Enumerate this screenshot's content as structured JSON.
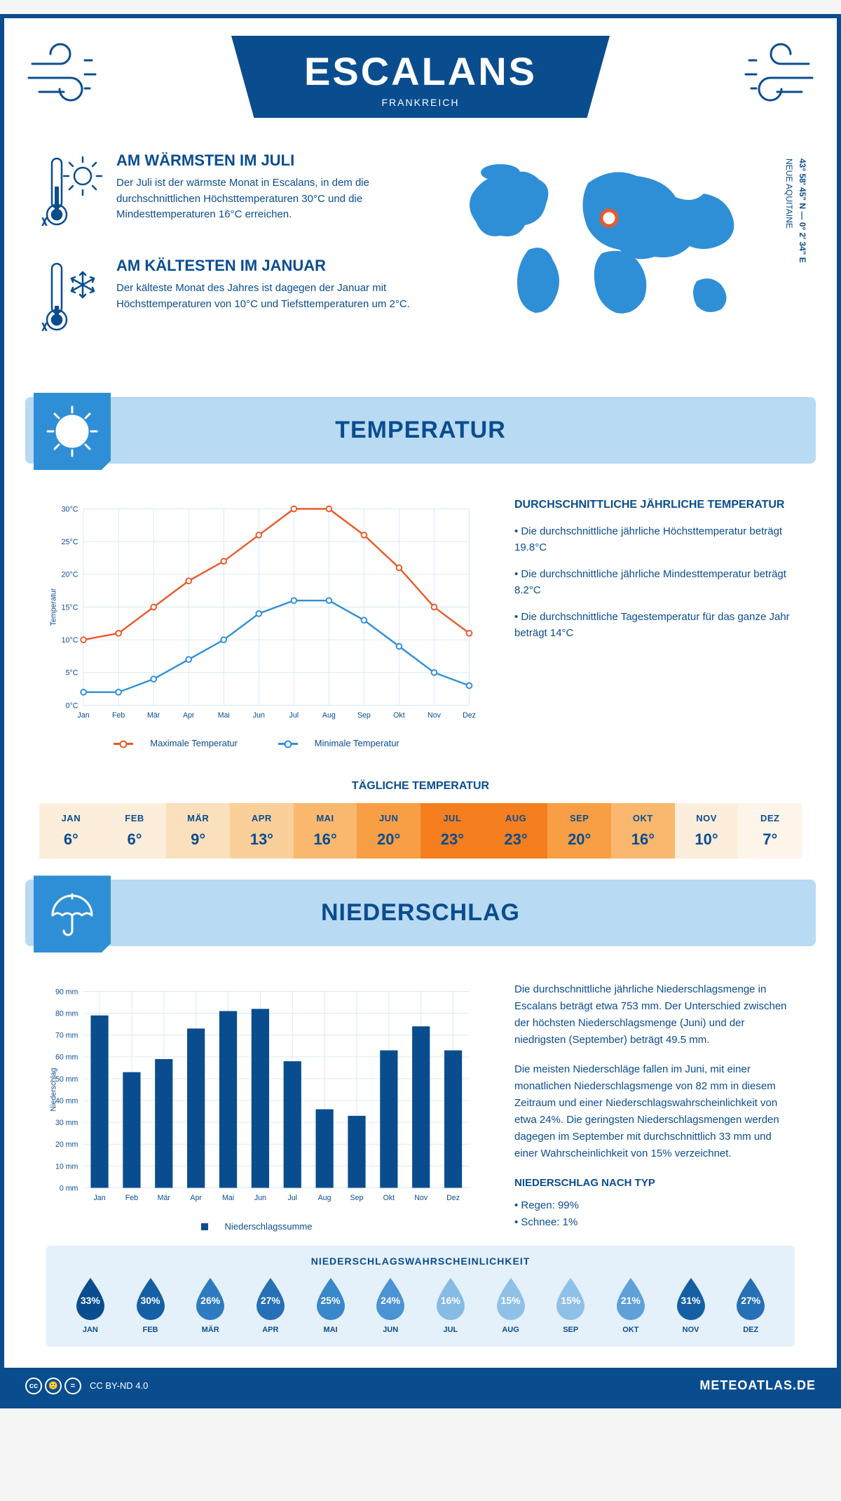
{
  "header": {
    "city": "ESCALANS",
    "country": "FRANKREICH"
  },
  "coords": {
    "line1": "43° 58' 45\" N — 0° 2' 34\" E",
    "line2": "NEUE AQUITAINE"
  },
  "facts": {
    "warm": {
      "title": "AM WÄRMSTEN IM JULI",
      "text": "Der Juli ist der wärmste Monat in Escalans, in dem die durchschnittlichen Höchsttemperaturen 30°C und die Mindesttemperaturen 16°C erreichen."
    },
    "cold": {
      "title": "AM KÄLTESTEN IM JANUAR",
      "text": "Der kälteste Monat des Jahres ist dagegen der Januar mit Höchsttemperaturen von 10°C und Tiefsttemperaturen um 2°C."
    }
  },
  "sections": {
    "temp": "TEMPERATUR",
    "precip": "NIEDERSCHLAG"
  },
  "temp_chart": {
    "type": "line",
    "months": [
      "Jan",
      "Feb",
      "Mär",
      "Apr",
      "Mai",
      "Jun",
      "Jul",
      "Aug",
      "Sep",
      "Okt",
      "Nov",
      "Dez"
    ],
    "max_values": [
      10,
      11,
      15,
      19,
      22,
      26,
      30,
      30,
      26,
      21,
      15,
      11
    ],
    "min_values": [
      2,
      2,
      4,
      7,
      10,
      14,
      16,
      16,
      13,
      9,
      5,
      3
    ],
    "max_color": "#e85a2a",
    "min_color": "#2f8fd6",
    "ylim": [
      0,
      30
    ],
    "ytick_step": 5,
    "y_suffix": "°C",
    "y_axis_title": "Temperatur",
    "grid_color": "#d6e9f6",
    "legend_max": "Maximale Temperatur",
    "legend_min": "Minimale Temperatur",
    "marker_radius": 4,
    "line_width": 2.5
  },
  "temp_side": {
    "title": "DURCHSCHNITTLICHE JÄHRLICHE TEMPERATUR",
    "b1": "• Die durchschnittliche jährliche Höchsttemperatur beträgt 19.8°C",
    "b2": "• Die durchschnittliche jährliche Mindesttemperatur beträgt 8.2°C",
    "b3": "• Die durchschnittliche Tagestemperatur für das ganze Jahr beträgt 14°C"
  },
  "daily": {
    "title": "TÄGLICHE TEMPERATUR",
    "months": [
      "JAN",
      "FEB",
      "MÄR",
      "APR",
      "MAI",
      "JUN",
      "JUL",
      "AUG",
      "SEP",
      "OKT",
      "NOV",
      "DEZ"
    ],
    "values": [
      "6°",
      "6°",
      "9°",
      "13°",
      "16°",
      "20°",
      "23°",
      "23°",
      "20°",
      "16°",
      "10°",
      "7°"
    ],
    "colors": [
      "#fceedb",
      "#fceedb",
      "#fbe0bd",
      "#fbcf9a",
      "#fab86f",
      "#f89f46",
      "#f57e1f",
      "#f57e1f",
      "#f89f46",
      "#fab86f",
      "#fceedb",
      "#fdf5ea"
    ]
  },
  "precip_chart": {
    "type": "bar",
    "months": [
      "Jan",
      "Feb",
      "Mär",
      "Apr",
      "Mai",
      "Jun",
      "Jul",
      "Aug",
      "Sep",
      "Okt",
      "Nov",
      "Dez"
    ],
    "values": [
      79,
      53,
      59,
      73,
      81,
      82,
      58,
      36,
      33,
      63,
      74,
      63
    ],
    "bar_color": "#0a4d8f",
    "ylim": [
      0,
      90
    ],
    "ytick_step": 10,
    "y_suffix": " mm",
    "y_axis_title": "Niederschlag",
    "grid_color": "#d6e9f6",
    "legend": "Niederschlagssumme",
    "bar_width_ratio": 0.55
  },
  "precip_side": {
    "p1": "Die durchschnittliche jährliche Niederschlagsmenge in Escalans beträgt etwa 753 mm. Der Unterschied zwischen der höchsten Niederschlagsmenge (Juni) und der niedrigsten (September) beträgt 49.5 mm.",
    "p2": "Die meisten Niederschläge fallen im Juni, mit einer monatlichen Niederschlagsmenge von 82 mm in diesem Zeitraum und einer Niederschlagswahrscheinlichkeit von etwa 24%. Die geringsten Niederschlagsmengen werden dagegen im September mit durchschnittlich 33 mm und einer Wahrscheinlichkeit von 15% verzeichnet.",
    "type_title": "NIEDERSCHLAG NACH TYP",
    "type1": "• Regen: 99%",
    "type2": "• Schnee: 1%"
  },
  "prob": {
    "title": "NIEDERSCHLAGSWAHRSCHEINLICHKEIT",
    "months": [
      "JAN",
      "FEB",
      "MÄR",
      "APR",
      "MAI",
      "JUN",
      "JUL",
      "AUG",
      "SEP",
      "OKT",
      "NOV",
      "DEZ"
    ],
    "values": [
      "33%",
      "30%",
      "26%",
      "27%",
      "25%",
      "24%",
      "16%",
      "15%",
      "15%",
      "21%",
      "31%",
      "27%"
    ],
    "colors": [
      "#0a4d8f",
      "#1560a5",
      "#2f7bc1",
      "#2670b6",
      "#3a87cb",
      "#4a93d4",
      "#85bbe5",
      "#8fc1e8",
      "#8fc1e8",
      "#5fa0d9",
      "#1560a5",
      "#2670b6"
    ]
  },
  "footer": {
    "license": "CC BY-ND 4.0",
    "brand": "METEOATLAS.DE"
  },
  "palette": {
    "primary": "#0a4d8f",
    "accent": "#2f8fd6",
    "section_bg": "#b8daf2"
  }
}
